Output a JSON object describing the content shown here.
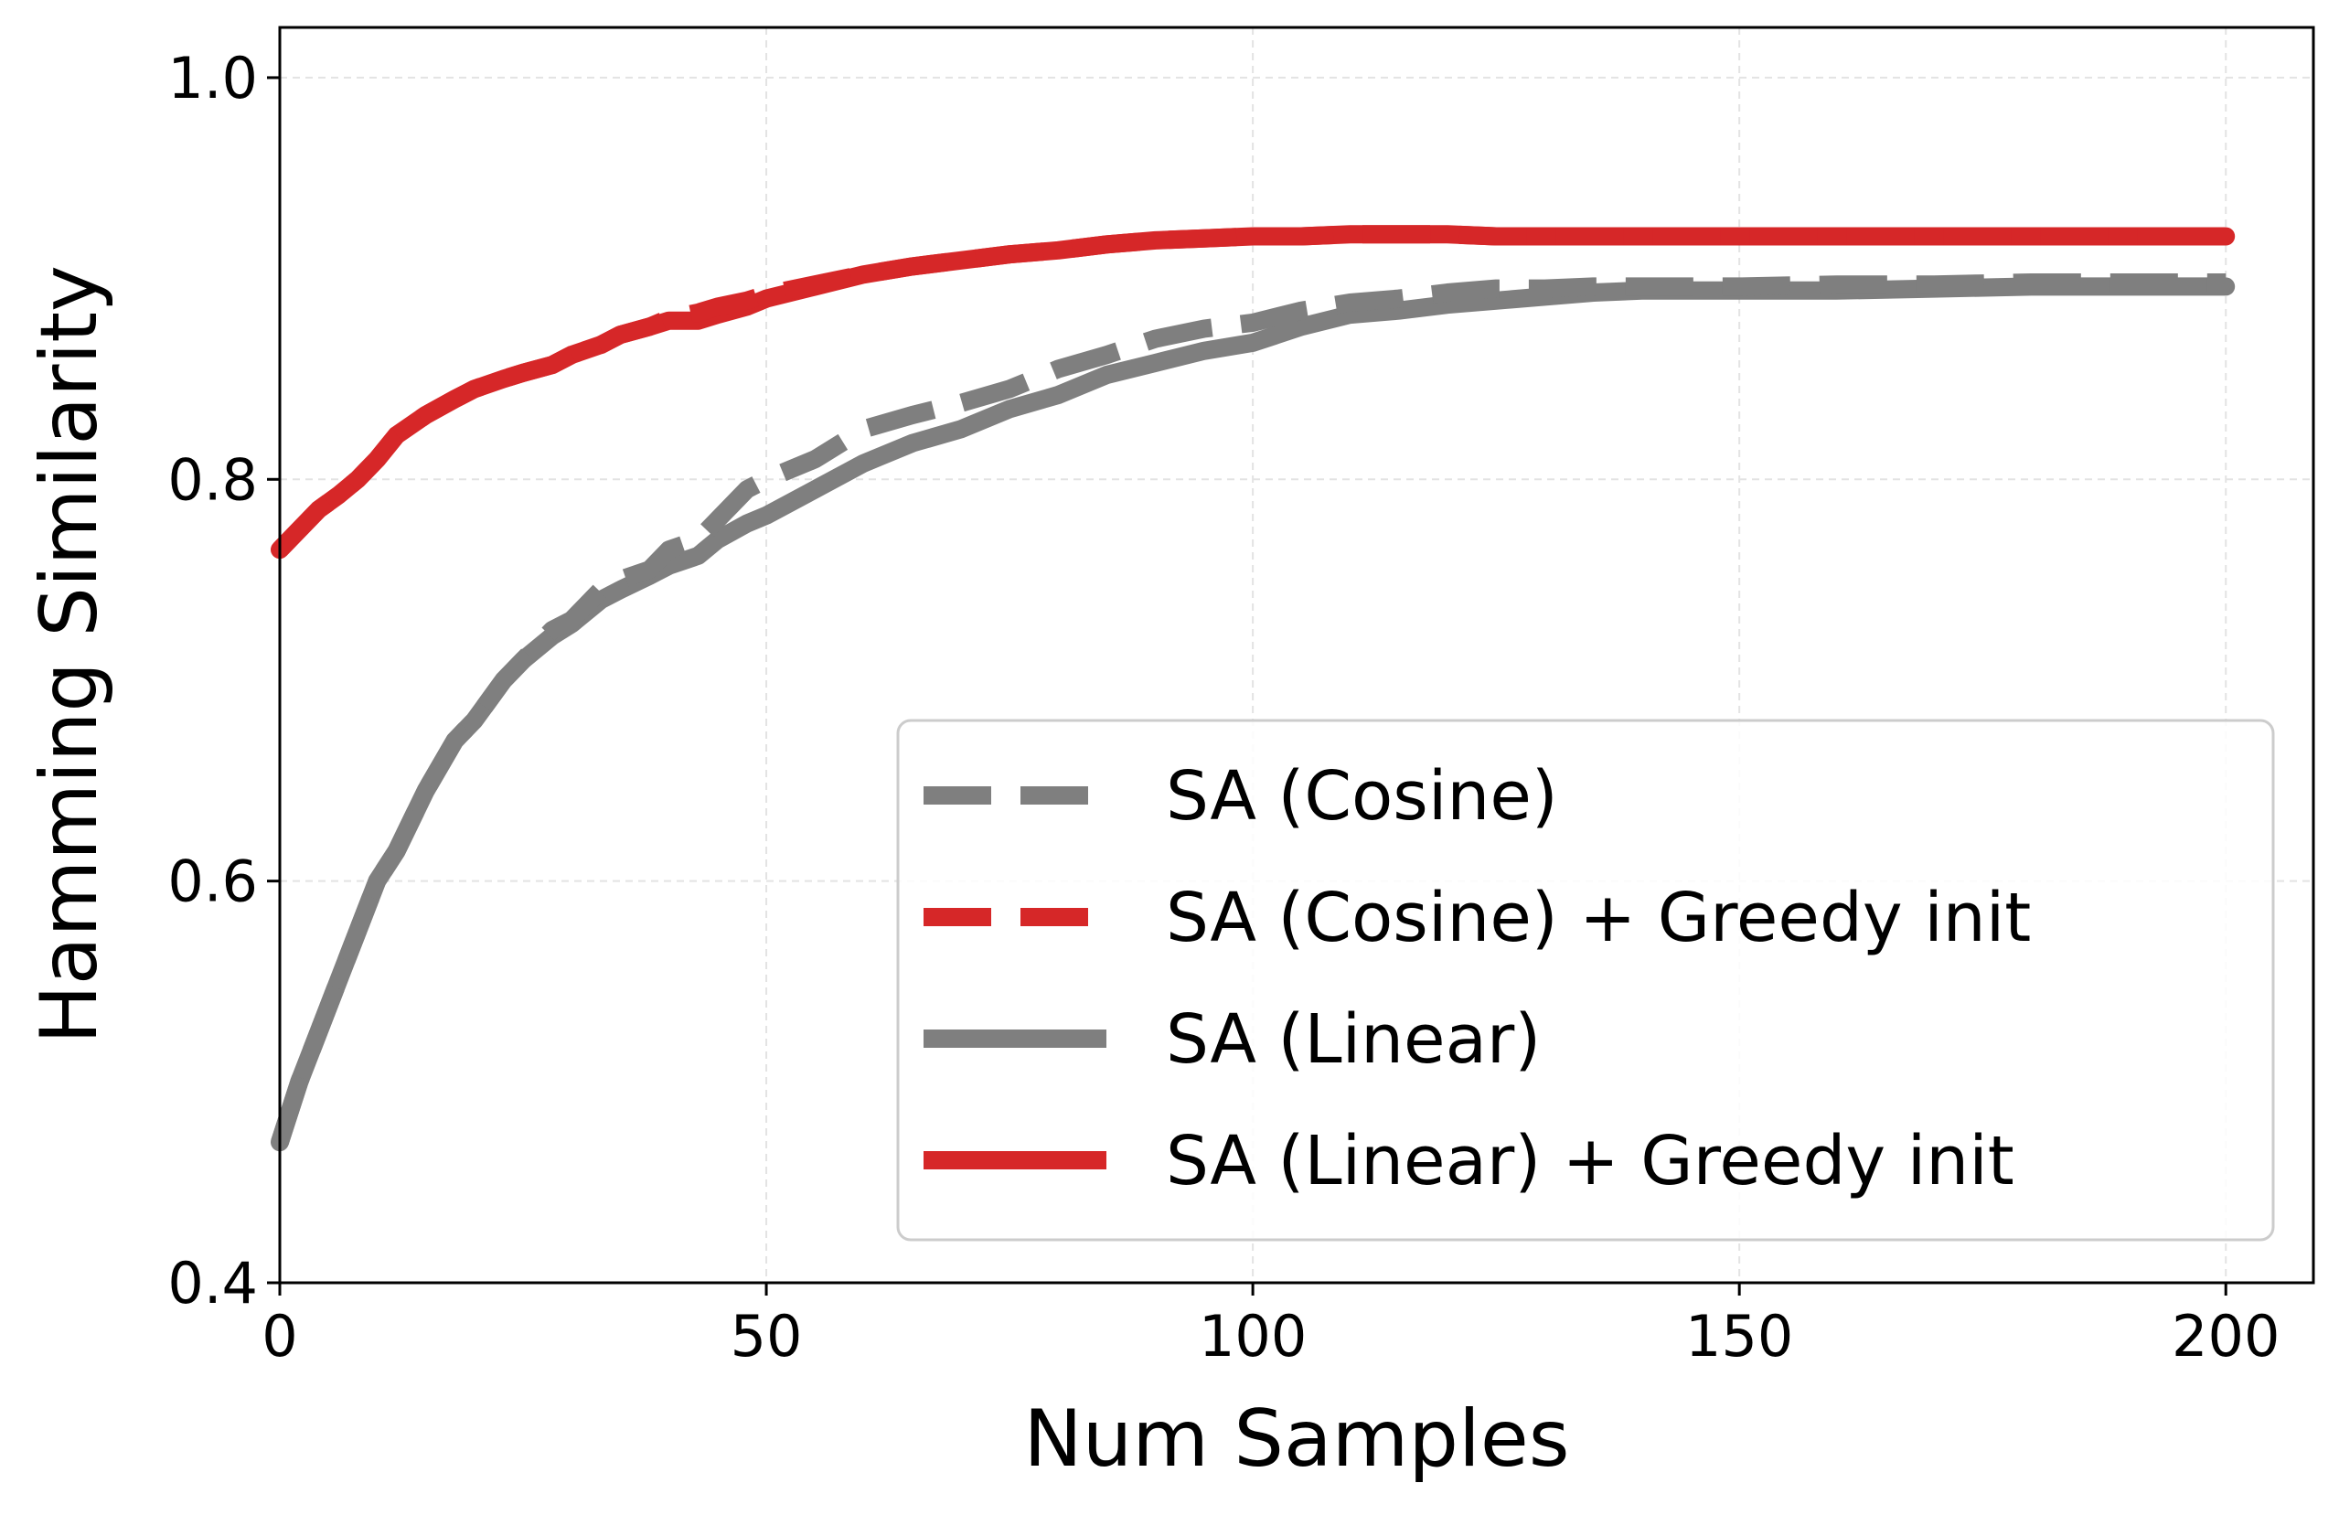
{
  "chart_data": {
    "type": "line",
    "title": "",
    "xlabel": "Num Samples",
    "ylabel": "Hamming Similarity",
    "xlim": [
      0,
      209
    ],
    "ylim": [
      0.4,
      1.025
    ],
    "xticks": [
      0,
      50,
      100,
      150,
      200
    ],
    "xtick_labels": [
      "0",
      "50",
      "100",
      "150",
      "200"
    ],
    "yticks": [
      0.4,
      0.6,
      0.8,
      1.0
    ],
    "ytick_labels": [
      "0.4",
      "0.6",
      "0.8",
      "1.0"
    ],
    "grid": true,
    "legend_position": "lower-right",
    "series": [
      {
        "name": "SA (Cosine)",
        "color": "#7f7f7f",
        "style": "dashed",
        "x": [
          0,
          2,
          4,
          6,
          8,
          10,
          12,
          15,
          18,
          20,
          23,
          25,
          28,
          30,
          33,
          35,
          38,
          40,
          43,
          45,
          48,
          50,
          55,
          60,
          65,
          70,
          75,
          80,
          85,
          90,
          95,
          100,
          105,
          110,
          115,
          120,
          125,
          130,
          135,
          140,
          150,
          160,
          170,
          180,
          190,
          200
        ],
        "y": [
          0.47,
          0.5,
          0.525,
          0.55,
          0.575,
          0.6,
          0.615,
          0.645,
          0.67,
          0.68,
          0.7,
          0.71,
          0.725,
          0.73,
          0.745,
          0.75,
          0.755,
          0.765,
          0.77,
          0.78,
          0.795,
          0.8,
          0.81,
          0.825,
          0.832,
          0.838,
          0.845,
          0.855,
          0.862,
          0.87,
          0.875,
          0.878,
          0.884,
          0.888,
          0.89,
          0.893,
          0.895,
          0.895,
          0.896,
          0.896,
          0.896,
          0.897,
          0.897,
          0.898,
          0.898,
          0.898
        ]
      },
      {
        "name": "SA (Cosine) + Greedy init",
        "color": "#d62728",
        "style": "dashed",
        "x": [
          0,
          2,
          4,
          6,
          8,
          10,
          12,
          15,
          18,
          20,
          23,
          25,
          28,
          30,
          33,
          35,
          38,
          40,
          43,
          45,
          48,
          50,
          55,
          60,
          65,
          70,
          75,
          80,
          85,
          90,
          95,
          100,
          105,
          110,
          115,
          120,
          125,
          130,
          140,
          150,
          160,
          170,
          180,
          190,
          200
        ],
        "y": [
          0.765,
          0.775,
          0.785,
          0.792,
          0.8,
          0.81,
          0.822,
          0.832,
          0.84,
          0.845,
          0.85,
          0.853,
          0.857,
          0.862,
          0.867,
          0.872,
          0.876,
          0.88,
          0.883,
          0.886,
          0.889,
          0.892,
          0.897,
          0.902,
          0.906,
          0.909,
          0.912,
          0.914,
          0.917,
          0.919,
          0.92,
          0.921,
          0.921,
          0.922,
          0.922,
          0.922,
          0.921,
          0.921,
          0.921,
          0.921,
          0.921,
          0.921,
          0.921,
          0.921,
          0.921
        ]
      },
      {
        "name": "SA (Linear)",
        "color": "#7f7f7f",
        "style": "solid",
        "x": [
          0,
          2,
          4,
          6,
          8,
          10,
          12,
          15,
          18,
          20,
          23,
          25,
          28,
          30,
          33,
          35,
          38,
          40,
          43,
          45,
          48,
          50,
          55,
          60,
          65,
          70,
          75,
          80,
          85,
          90,
          95,
          100,
          105,
          110,
          115,
          120,
          125,
          130,
          135,
          140,
          150,
          160,
          170,
          180,
          190,
          200
        ],
        "y": [
          0.47,
          0.5,
          0.525,
          0.55,
          0.575,
          0.6,
          0.615,
          0.645,
          0.67,
          0.68,
          0.7,
          0.71,
          0.722,
          0.728,
          0.74,
          0.745,
          0.752,
          0.757,
          0.762,
          0.77,
          0.778,
          0.782,
          0.795,
          0.808,
          0.818,
          0.825,
          0.835,
          0.842,
          0.852,
          0.858,
          0.864,
          0.868,
          0.876,
          0.882,
          0.884,
          0.887,
          0.889,
          0.891,
          0.893,
          0.894,
          0.894,
          0.894,
          0.895,
          0.896,
          0.896,
          0.896
        ]
      },
      {
        "name": "SA (Linear) + Greedy init",
        "color": "#d62728",
        "style": "solid",
        "x": [
          0,
          2,
          4,
          6,
          8,
          10,
          12,
          15,
          18,
          20,
          23,
          25,
          28,
          30,
          33,
          35,
          38,
          40,
          43,
          45,
          48,
          50,
          55,
          60,
          65,
          70,
          75,
          80,
          85,
          90,
          95,
          100,
          105,
          110,
          115,
          120,
          125,
          130,
          140,
          150,
          160,
          170,
          180,
          190,
          200
        ],
        "y": [
          0.765,
          0.775,
          0.785,
          0.792,
          0.8,
          0.81,
          0.822,
          0.832,
          0.84,
          0.845,
          0.85,
          0.853,
          0.857,
          0.862,
          0.867,
          0.872,
          0.876,
          0.879,
          0.879,
          0.882,
          0.886,
          0.89,
          0.896,
          0.902,
          0.906,
          0.909,
          0.912,
          0.914,
          0.917,
          0.919,
          0.92,
          0.921,
          0.921,
          0.922,
          0.922,
          0.922,
          0.921,
          0.921,
          0.921,
          0.921,
          0.921,
          0.921,
          0.921,
          0.921,
          0.921
        ]
      }
    ]
  }
}
